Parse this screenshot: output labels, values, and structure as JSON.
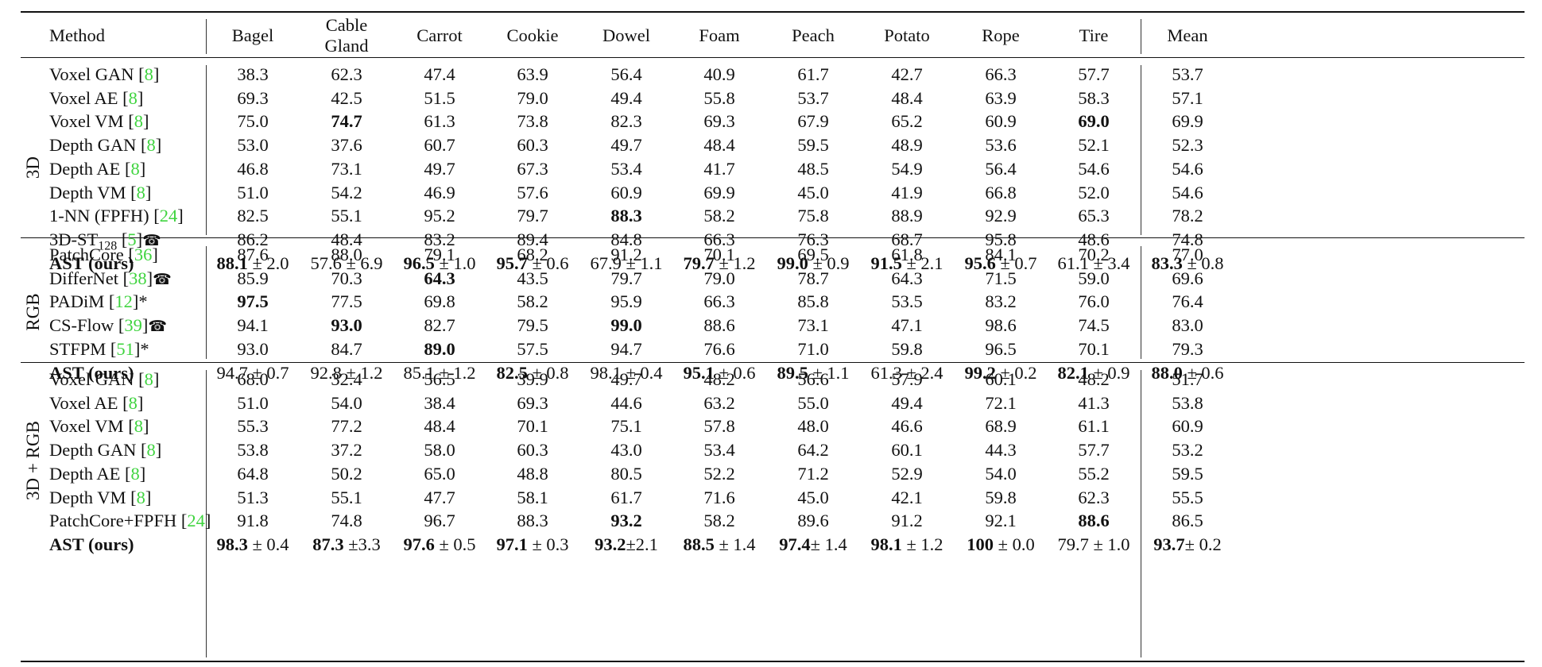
{
  "columns": [
    "Method",
    "Bagel",
    "Cable Gland",
    "Carrot",
    "Cookie",
    "Dowel",
    "Foam",
    "Peach",
    "Potato",
    "Rope",
    "Tire",
    "Mean"
  ],
  "groups": [
    {
      "label": "3D",
      "rows": [
        {
          "name": "Voxel GAN",
          "ref": "8",
          "cells": [
            {
              "v": "38.3"
            },
            {
              "v": "62.3"
            },
            {
              "v": "47.4"
            },
            {
              "v": "63.9"
            },
            {
              "v": "56.4"
            },
            {
              "v": "40.9"
            },
            {
              "v": "61.7"
            },
            {
              "v": "42.7"
            },
            {
              "v": "66.3"
            },
            {
              "v": "57.7"
            },
            {
              "v": "53.7"
            }
          ]
        },
        {
          "name": "Voxel AE",
          "ref": "8",
          "cells": [
            {
              "v": "69.3"
            },
            {
              "v": "42.5"
            },
            {
              "v": "51.5"
            },
            {
              "v": "79.0"
            },
            {
              "v": "49.4"
            },
            {
              "v": "55.8"
            },
            {
              "v": "53.7"
            },
            {
              "v": "48.4"
            },
            {
              "v": "63.9"
            },
            {
              "v": "58.3"
            },
            {
              "v": "57.1"
            }
          ]
        },
        {
          "name": "Voxel VM",
          "ref": "8",
          "cells": [
            {
              "v": "75.0"
            },
            {
              "v": "74.7",
              "bold": true
            },
            {
              "v": "61.3"
            },
            {
              "v": "73.8"
            },
            {
              "v": "82.3"
            },
            {
              "v": "69.3"
            },
            {
              "v": "67.9"
            },
            {
              "v": "65.2"
            },
            {
              "v": "60.9"
            },
            {
              "v": "69.0",
              "bold": true
            },
            {
              "v": "69.9"
            }
          ]
        },
        {
          "name": "Depth GAN",
          "ref": "8",
          "cells": [
            {
              "v": "53.0"
            },
            {
              "v": "37.6"
            },
            {
              "v": "60.7"
            },
            {
              "v": "60.3"
            },
            {
              "v": "49.7"
            },
            {
              "v": "48.4"
            },
            {
              "v": "59.5"
            },
            {
              "v": "48.9"
            },
            {
              "v": "53.6"
            },
            {
              "v": "52.1"
            },
            {
              "v": "52.3"
            }
          ]
        },
        {
          "name": "Depth AE",
          "ref": "8",
          "cells": [
            {
              "v": "46.8"
            },
            {
              "v": "73.1"
            },
            {
              "v": "49.7"
            },
            {
              "v": "67.3"
            },
            {
              "v": "53.4"
            },
            {
              "v": "41.7"
            },
            {
              "v": "48.5"
            },
            {
              "v": "54.9"
            },
            {
              "v": "56.4"
            },
            {
              "v": "54.6"
            },
            {
              "v": "54.6"
            }
          ]
        },
        {
          "name": "Depth VM",
          "ref": "8",
          "cells": [
            {
              "v": "51.0"
            },
            {
              "v": "54.2"
            },
            {
              "v": "46.9"
            },
            {
              "v": "57.6"
            },
            {
              "v": "60.9"
            },
            {
              "v": "69.9"
            },
            {
              "v": "45.0"
            },
            {
              "v": "41.9"
            },
            {
              "v": "66.8"
            },
            {
              "v": "52.0"
            },
            {
              "v": "54.6"
            }
          ]
        },
        {
          "name": "1-NN (FPFH)",
          "ref": "24",
          "cells": [
            {
              "v": "82.5"
            },
            {
              "v": "55.1"
            },
            {
              "v": "95.2"
            },
            {
              "v": "79.7"
            },
            {
              "v": "88.3",
              "bold": true
            },
            {
              "v": "58.2"
            },
            {
              "v": "75.8"
            },
            {
              "v": "88.9"
            },
            {
              "v": "92.9"
            },
            {
              "v": "65.3"
            },
            {
              "v": "78.2"
            }
          ]
        },
        {
          "name": "3D-ST",
          "sub": "128",
          "ref": "5",
          "suffix": "☎",
          "cells": [
            {
              "v": "86.2"
            },
            {
              "v": "48.4"
            },
            {
              "v": "83.2"
            },
            {
              "v": "89.4"
            },
            {
              "v": "84.8"
            },
            {
              "v": "66.3"
            },
            {
              "v": "76.3"
            },
            {
              "v": "68.7"
            },
            {
              "v": "95.8"
            },
            {
              "v": "48.6"
            },
            {
              "v": "74.8"
            }
          ]
        },
        {
          "name": "AST (ours)",
          "bold": true,
          "cells": [
            {
              "v": "88.1",
              "pm": " ± 2.0",
              "bold": true
            },
            {
              "v": "57.6",
              "pm": " ± 6.9"
            },
            {
              "v": "96.5",
              "pm": " ± 1.0",
              "bold": true
            },
            {
              "v": "95.7",
              "pm": " ± 0.6",
              "bold": true
            },
            {
              "v": "67.9",
              "pm": " ± 1.1"
            },
            {
              "v": "79.7",
              "pm": " ± 1.2",
              "bold": true
            },
            {
              "v": "99.0",
              "pm": " ± 0.9",
              "bold": true
            },
            {
              "v": "91.5",
              "pm": " ± 2.1",
              "bold": true
            },
            {
              "v": "95.6",
              "pm": " ± 0.7",
              "bold": true
            },
            {
              "v": "61.1",
              "pm": " ± 3.4"
            },
            {
              "v": "83.3",
              "pm": " ± 0.8",
              "bold": true
            }
          ]
        }
      ]
    },
    {
      "label": "RGB",
      "rows": [
        {
          "name": "PatchCore",
          "ref": "36",
          "cells": [
            {
              "v": "87.6"
            },
            {
              "v": "88.0"
            },
            {
              "v": "79.1"
            },
            {
              "v": "68.2"
            },
            {
              "v": "91.2"
            },
            {
              "v": "70.1"
            },
            {
              "v": "69.5"
            },
            {
              "v": "61.8"
            },
            {
              "v": "84.1"
            },
            {
              "v": "70.2"
            },
            {
              "v": "77.0"
            }
          ]
        },
        {
          "name": "DifferNet",
          "ref": "38",
          "suffix": "☎",
          "cells": [
            {
              "v": "85.9"
            },
            {
              "v": "70.3"
            },
            {
              "v": "64.3",
              "bold": true
            },
            {
              "v": "43.5"
            },
            {
              "v": "79.7"
            },
            {
              "v": "79.0"
            },
            {
              "v": "78.7"
            },
            {
              "v": "64.3"
            },
            {
              "v": "71.5"
            },
            {
              "v": "59.0"
            },
            {
              "v": "69.6"
            }
          ]
        },
        {
          "name": "PADiM",
          "ref": "12",
          "suffix": "*",
          "cells": [
            {
              "v": "97.5",
              "bold": true
            },
            {
              "v": "77.5"
            },
            {
              "v": "69.8"
            },
            {
              "v": "58.2"
            },
            {
              "v": "95.9"
            },
            {
              "v": "66.3"
            },
            {
              "v": "85.8"
            },
            {
              "v": "53.5"
            },
            {
              "v": "83.2"
            },
            {
              "v": "76.0"
            },
            {
              "v": "76.4"
            }
          ]
        },
        {
          "name": "CS-Flow",
          "ref": "39",
          "suffix": "☎",
          "cells": [
            {
              "v": "94.1"
            },
            {
              "v": "93.0",
              "bold": true
            },
            {
              "v": "82.7"
            },
            {
              "v": "79.5"
            },
            {
              "v": "99.0",
              "bold": true
            },
            {
              "v": "88.6"
            },
            {
              "v": "73.1"
            },
            {
              "v": "47.1"
            },
            {
              "v": "98.6"
            },
            {
              "v": "74.5"
            },
            {
              "v": "83.0"
            }
          ]
        },
        {
          "name": "STFPM",
          "ref": "51",
          "suffix": "*",
          "cells": [
            {
              "v": "93.0"
            },
            {
              "v": "84.7"
            },
            {
              "v": "89.0",
              "bold": true
            },
            {
              "v": "57.5"
            },
            {
              "v": "94.7"
            },
            {
              "v": "76.6"
            },
            {
              "v": "71.0"
            },
            {
              "v": "59.8"
            },
            {
              "v": "96.5"
            },
            {
              "v": "70.1"
            },
            {
              "v": "79.3"
            }
          ]
        },
        {
          "name": "AST (ours)",
          "bold": true,
          "cells": [
            {
              "v": "94.7",
              "pm": " ± 0.7"
            },
            {
              "v": "92.8",
              "pm": " ± 1.2"
            },
            {
              "v": "85.1",
              "pm": " ± 1.2"
            },
            {
              "v": "82.5",
              "pm": " ± 0.8",
              "bold": true
            },
            {
              "v": "98.1",
              "pm": " ± 0.4"
            },
            {
              "v": "95.1",
              "pm": " ± 0.6",
              "bold": true
            },
            {
              "v": "89.5",
              "pm": " ± 1.1",
              "bold": true
            },
            {
              "v": "61.3",
              "pm": " ± 2.4"
            },
            {
              "v": "99.2",
              "pm": " ± 0.2",
              "bold": true
            },
            {
              "v": "82.1",
              "pm": " ± 0.9",
              "bold": true
            },
            {
              "v": "88.0",
              "pm": " ± 0.6",
              "bold": true
            }
          ]
        }
      ]
    },
    {
      "label": "3D + RGB",
      "rows": [
        {
          "name": "Voxel GAN",
          "ref": "8",
          "cells": [
            {
              "v": "68.0"
            },
            {
              "v": "32.4"
            },
            {
              "v": "56.5"
            },
            {
              "v": "39.9"
            },
            {
              "v": "49.7"
            },
            {
              "v": "48.2"
            },
            {
              "v": "56.6"
            },
            {
              "v": "57.9"
            },
            {
              "v": "60.1"
            },
            {
              "v": "48.2"
            },
            {
              "v": "51.7"
            }
          ]
        },
        {
          "name": "Voxel AE",
          "ref": "8",
          "cells": [
            {
              "v": "51.0"
            },
            {
              "v": "54.0"
            },
            {
              "v": "38.4"
            },
            {
              "v": "69.3"
            },
            {
              "v": "44.6"
            },
            {
              "v": "63.2"
            },
            {
              "v": "55.0"
            },
            {
              "v": "49.4"
            },
            {
              "v": "72.1"
            },
            {
              "v": "41.3"
            },
            {
              "v": "53.8"
            }
          ]
        },
        {
          "name": "Voxel VM",
          "ref": "8",
          "cells": [
            {
              "v": "55.3"
            },
            {
              "v": "77.2"
            },
            {
              "v": "48.4"
            },
            {
              "v": "70.1"
            },
            {
              "v": "75.1"
            },
            {
              "v": "57.8"
            },
            {
              "v": "48.0"
            },
            {
              "v": "46.6"
            },
            {
              "v": "68.9"
            },
            {
              "v": "61.1"
            },
            {
              "v": "60.9"
            }
          ]
        },
        {
          "name": "Depth GAN",
          "ref": "8",
          "cells": [
            {
              "v": "53.8"
            },
            {
              "v": "37.2"
            },
            {
              "v": "58.0"
            },
            {
              "v": "60.3"
            },
            {
              "v": "43.0"
            },
            {
              "v": "53.4"
            },
            {
              "v": "64.2"
            },
            {
              "v": "60.1"
            },
            {
              "v": "44.3"
            },
            {
              "v": "57.7"
            },
            {
              "v": "53.2"
            }
          ]
        },
        {
          "name": "Depth AE",
          "ref": "8",
          "cells": [
            {
              "v": "64.8"
            },
            {
              "v": "50.2"
            },
            {
              "v": "65.0"
            },
            {
              "v": "48.8"
            },
            {
              "v": "80.5"
            },
            {
              "v": "52.2"
            },
            {
              "v": "71.2"
            },
            {
              "v": "52.9"
            },
            {
              "v": "54.0"
            },
            {
              "v": "55.2"
            },
            {
              "v": "59.5"
            }
          ]
        },
        {
          "name": "Depth VM",
          "ref": "8",
          "cells": [
            {
              "v": "51.3"
            },
            {
              "v": "55.1"
            },
            {
              "v": "47.7"
            },
            {
              "v": "58.1"
            },
            {
              "v": "61.7"
            },
            {
              "v": "71.6"
            },
            {
              "v": "45.0"
            },
            {
              "v": "42.1"
            },
            {
              "v": "59.8"
            },
            {
              "v": "62.3"
            },
            {
              "v": "55.5"
            }
          ]
        },
        {
          "name": "PatchCore+FPFH",
          "ref": "24",
          "cells": [
            {
              "v": "91.8"
            },
            {
              "v": "74.8"
            },
            {
              "v": "96.7"
            },
            {
              "v": "88.3"
            },
            {
              "v": "93.2",
              "bold": true
            },
            {
              "v": "58.2"
            },
            {
              "v": "89.6"
            },
            {
              "v": "91.2"
            },
            {
              "v": "92.1"
            },
            {
              "v": "88.6",
              "bold": true
            },
            {
              "v": "86.5"
            }
          ]
        },
        {
          "name": "AST (ours)",
          "bold": true,
          "cells": [
            {
              "v": "98.3",
              "pm": " ± 0.4",
              "bold": true
            },
            {
              "v": "87.3",
              "pm": " ±3.3",
              "bold": true
            },
            {
              "v": "97.6",
              "pm": " ± 0.5",
              "bold": true
            },
            {
              "v": "97.1",
              "pm": " ± 0.3",
              "bold": true
            },
            {
              "v": "93.2",
              "pm": "±2.1",
              "bold": true
            },
            {
              "v": "88.5",
              "pm": " ± 1.4",
              "bold": true
            },
            {
              "v": "97.4",
              "pm": "± 1.4",
              "bold": true
            },
            {
              "v": "98.1",
              "pm": " ± 1.2",
              "bold": true
            },
            {
              "v": "100",
              "pm": " ± 0.0",
              "bold": true
            },
            {
              "v": "79.7",
              "pm": " ± 1.0"
            },
            {
              "v": "93.7",
              "pm": "± 0.2",
              "bold": true
            }
          ]
        }
      ]
    }
  ]
}
